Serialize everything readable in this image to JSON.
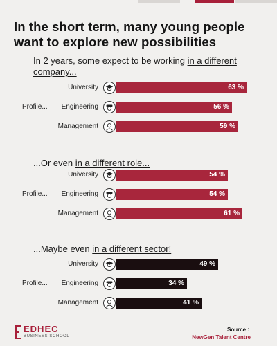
{
  "title": "In the short term, many young people want to explore new possibilities",
  "profile_label": "Profile...",
  "colors": {
    "company_bar": "#a8263c",
    "role_bar": "#a8263c",
    "sector_bar": "#1a0e10",
    "accent": "#a8203a"
  },
  "sections": [
    {
      "prefix": "In 2 years, some expect to be working ",
      "highlight": "in a different company...",
      "suffix": ""
    },
    {
      "prefix": "...Or even ",
      "highlight": "in a different role...",
      "suffix": ""
    },
    {
      "prefix": "...Maybe even ",
      "highlight": "in a different sector!",
      "suffix": ""
    }
  ],
  "chart_data": [
    {
      "type": "bar",
      "title": "In 2 years, some expect to be working in a different company...",
      "categories": [
        "University",
        "Engineering",
        "Management"
      ],
      "values": [
        63,
        56,
        59
      ],
      "value_labels": [
        "63 %",
        "56 %",
        "59 %"
      ],
      "unit": "%",
      "icons": [
        "graduate-icon",
        "engineer-icon",
        "manager-icon"
      ]
    },
    {
      "type": "bar",
      "title": "...Or even in a different role...",
      "categories": [
        "University",
        "Engineering",
        "Management"
      ],
      "values": [
        54,
        54,
        61
      ],
      "value_labels": [
        "54 %",
        "54 %",
        "61 %"
      ],
      "unit": "%",
      "icons": [
        "graduate-icon",
        "engineer-icon",
        "manager-icon"
      ]
    },
    {
      "type": "bar",
      "title": "...Maybe even in a different sector!",
      "categories": [
        "University",
        "Engineering",
        "Management"
      ],
      "values": [
        49,
        34,
        41
      ],
      "value_labels": [
        "49 %",
        "34 %",
        "41 %"
      ],
      "unit": "%",
      "icons": [
        "graduate-icon",
        "engineer-icon",
        "manager-icon"
      ]
    }
  ],
  "logo": {
    "name": "EDHEC",
    "sub": "BUSINESS SCHOOL"
  },
  "source": {
    "label": "Source :",
    "value": "NewGen Talent Centre"
  }
}
